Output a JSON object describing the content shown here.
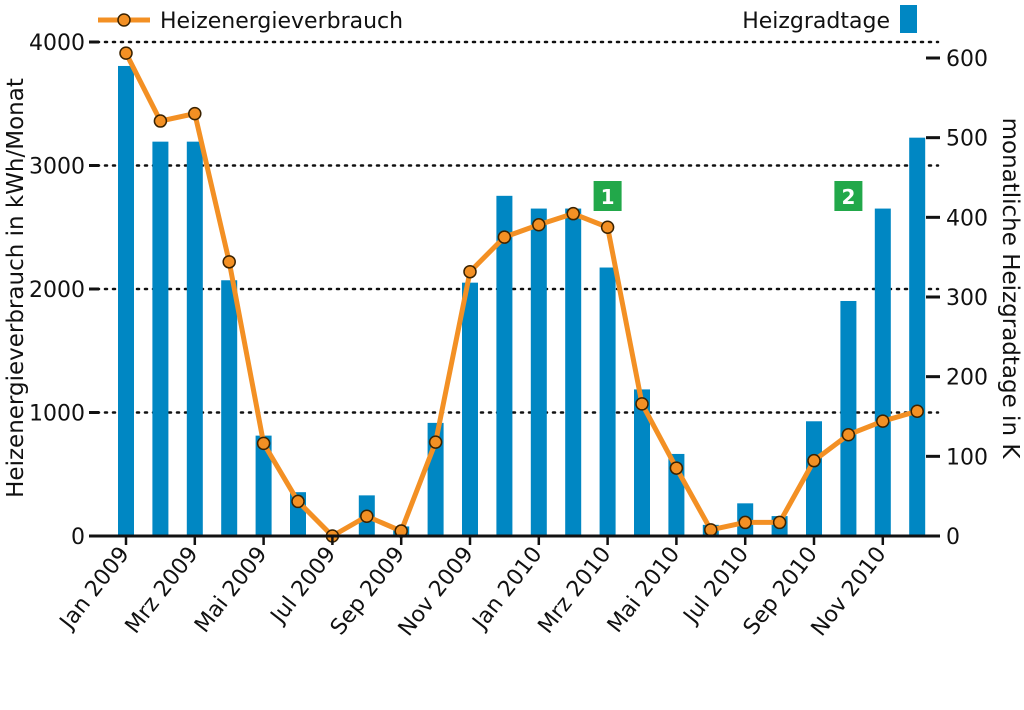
{
  "chart_data": {
    "type": "bar+line",
    "categories": [
      "Jan 2009",
      "Feb 2009",
      "Mrz 2009",
      "Apr 2009",
      "Mai 2009",
      "Jun 2009",
      "Jul 2009",
      "Aug 2009",
      "Sep 2009",
      "Okt 2009",
      "Nov 2009",
      "Dez 2009",
      "Jan 2010",
      "Feb 2010",
      "Mrz 2010",
      "Apr 2010",
      "Mai 2010",
      "Jun 2010",
      "Jul 2010",
      "Aug 2010",
      "Sep 2010",
      "Okt 2010",
      "Nov 2010",
      "Dez 2010"
    ],
    "x_tick_labels": [
      "Jan 2009",
      "Mrz 2009",
      "Mai 2009",
      "Jul 2009",
      "Sep 2009",
      "Nov 2009",
      "Jan 2010",
      "Mrz 2010",
      "Mai 2010",
      "Jul 2010",
      "Sep 2010",
      "Nov 2010"
    ],
    "series": [
      {
        "name": "Heizgradtage",
        "type": "bar",
        "axis": "right",
        "color": "#0087c3",
        "values": [
          590,
          495,
          495,
          321,
          126,
          55,
          0,
          51,
          12,
          142,
          318,
          427,
          411,
          411,
          337,
          184,
          103,
          14,
          41,
          25,
          144,
          295,
          411,
          500
        ]
      },
      {
        "name": "Heizenergieverbrauch",
        "type": "line",
        "axis": "left",
        "color": "#f39024",
        "values": [
          3910,
          3360,
          3420,
          2220,
          750,
          280,
          0,
          160,
          40,
          760,
          2140,
          2420,
          2520,
          2610,
          2500,
          1070,
          550,
          50,
          110,
          110,
          610,
          820,
          930,
          1010
        ]
      }
    ],
    "y_left": {
      "label": "Heizenergieverbrauch in kWh/Monat",
      "min": 0,
      "max": 4000,
      "ticks": [
        0,
        1000,
        2000,
        3000,
        4000
      ]
    },
    "y_right": {
      "label": "monatliche Heizgradtage in K",
      "min": 0,
      "max": 600,
      "ticks": [
        0,
        100,
        200,
        300,
        400,
        500,
        600
      ]
    },
    "grid": "horizontal-dotted",
    "legend": [
      {
        "name": "Heizenergieverbrauch",
        "placement": "top-left"
      },
      {
        "name": "Heizgradtage",
        "placement": "top-right"
      }
    ],
    "annotations": [
      {
        "text": "1",
        "category": "Mrz 2010",
        "color": "#22a84a"
      },
      {
        "text": "2",
        "category": "Okt 2010",
        "color": "#22a84a"
      }
    ]
  }
}
